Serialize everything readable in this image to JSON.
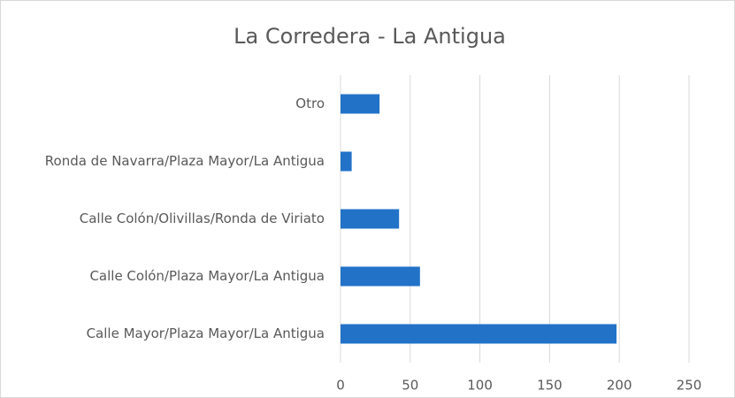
{
  "chart_data": {
    "type": "bar",
    "orientation": "horizontal",
    "title": "La Corredera - La Antigua",
    "categories": [
      "Calle Mayor/Plaza Mayor/La Antigua",
      "Calle Colón/Plaza Mayor/La Antigua",
      "Calle Colón/Olivillas/Ronda de Viriato",
      "Ronda de Navarra/Plaza Mayor/La Antigua",
      "Otro"
    ],
    "values": [
      198,
      57,
      42,
      8,
      28
    ],
    "color": "#2272c8",
    "xlim": [
      0,
      250
    ],
    "xticks": [
      0,
      50,
      100,
      150,
      200,
      250
    ],
    "grid": true
  }
}
